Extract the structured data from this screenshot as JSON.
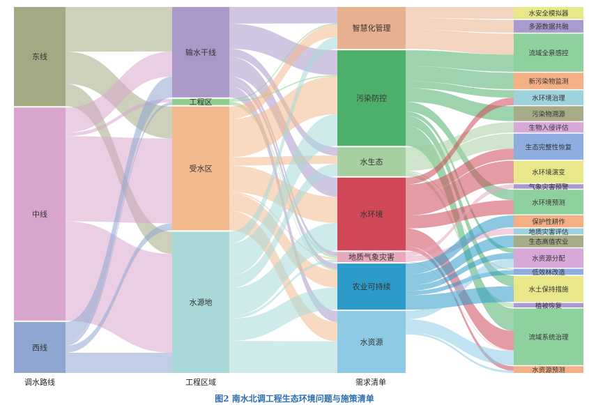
{
  "caption": "图2   南水北调工程生态环境问题与施策清单",
  "columns": [
    {
      "label": "调水路线"
    },
    {
      "label": "工程区域"
    },
    {
      "label": "需求清单"
    },
    {
      "label": ""
    }
  ],
  "nodes": [
    {
      "id": "dongxian",
      "name": "东线",
      "col": 0,
      "value": 142,
      "color": "#a4a984"
    },
    {
      "id": "zhongxian",
      "name": "中线",
      "col": 0,
      "value": 305,
      "color": "#d8a6cc"
    },
    {
      "id": "xixian",
      "name": "西线",
      "col": 0,
      "value": 73,
      "color": "#8ea6d0"
    },
    {
      "id": "shuxian",
      "name": "输水干线",
      "col": 1,
      "value": 130,
      "color": "#aa98c8"
    },
    {
      "id": "gongcheng",
      "name": "工程区",
      "col": 1,
      "value": 9,
      "color": "#90cf8f"
    },
    {
      "id": "shoushui",
      "name": "受水区",
      "col": 1,
      "value": 178,
      "color": "#f3b98e"
    },
    {
      "id": "shuiyuan",
      "name": "水源地",
      "col": 1,
      "value": 203,
      "color": "#a8d8d8"
    },
    {
      "id": "zhihui",
      "name": "智慧化管理",
      "col": 2,
      "value": 61,
      "color": "#e7b08e"
    },
    {
      "id": "wuran",
      "name": "污染防控",
      "col": 2,
      "value": 139,
      "color": "#4caf6a"
    },
    {
      "id": "shuisheng",
      "name": "水生态",
      "col": 2,
      "value": 42,
      "color": "#a6cfa2"
    },
    {
      "id": "shuihuan",
      "name": "水环境",
      "col": 2,
      "value": 106,
      "color": "#d04858"
    },
    {
      "id": "dizhi",
      "name": "地质气象灾害",
      "col": 2,
      "value": 15,
      "color": "#e8a8c0"
    },
    {
      "id": "nongye",
      "name": "农业可持续",
      "col": 2,
      "value": 67,
      "color": "#2d9bc9"
    },
    {
      "id": "shuiziyuan",
      "name": "水资源",
      "col": 2,
      "value": 90,
      "color": "#8ecae6"
    },
    {
      "id": "s1",
      "name": "水安全模拟器",
      "col": 3,
      "value": 16,
      "color": "#e8e88a"
    },
    {
      "id": "s2",
      "name": "多源数据共融",
      "col": 3,
      "value": 17,
      "color": "#a99ad0"
    },
    {
      "id": "s3",
      "name": "流域全景感控",
      "col": 3,
      "value": 51,
      "color": "#8fd19e"
    },
    {
      "id": "s4",
      "name": "新污染物监测",
      "col": 3,
      "value": 22,
      "color": "#f4b084"
    },
    {
      "id": "s5",
      "name": "水环境治理",
      "col": 3,
      "value": 20,
      "color": "#9ed3dd"
    },
    {
      "id": "s6",
      "name": "污染物溯源",
      "col": 3,
      "value": 20,
      "color": "#a8ab88"
    },
    {
      "id": "s7",
      "name": "生物入侵评估",
      "col": 3,
      "value": 14,
      "color": "#d8a8d8"
    },
    {
      "id": "s8",
      "name": "生态完整性恢复",
      "col": 3,
      "value": 35,
      "color": "#8eaee0"
    },
    {
      "id": "s9",
      "name": "水环境演变",
      "col": 3,
      "value": 30,
      "color": "#e8e88a"
    },
    {
      "id": "s10",
      "name": "气象灾害预警",
      "col": 3,
      "value": 6,
      "color": "#a99ad0"
    },
    {
      "id": "s11",
      "name": "水环境预测",
      "col": 3,
      "value": 33,
      "color": "#8fd19e"
    },
    {
      "id": "s12",
      "name": "保护性耕作",
      "col": 3,
      "value": 16,
      "color": "#f4b084"
    },
    {
      "id": "s13",
      "name": "地质灾害评估",
      "col": 3,
      "value": 8,
      "color": "#9ed3dd"
    },
    {
      "id": "s14",
      "name": "生态高值农业",
      "col": 3,
      "value": 16,
      "color": "#a8ab88"
    },
    {
      "id": "s15",
      "name": "水资源分配",
      "col": 3,
      "value": 26,
      "color": "#d8a8d8"
    },
    {
      "id": "s16",
      "name": "低效林改造",
      "col": 3,
      "value": 8,
      "color": "#8eaee0"
    },
    {
      "id": "s17",
      "name": "水土保持措施",
      "col": 3,
      "value": 35,
      "color": "#e8e88a"
    },
    {
      "id": "s18",
      "name": "植被恢复",
      "col": 3,
      "value": 6,
      "color": "#a99ad0"
    },
    {
      "id": "s19",
      "name": "流域系统治理",
      "col": 3,
      "value": 76,
      "color": "#8fd19e"
    },
    {
      "id": "s20",
      "name": "水资源预测",
      "col": 3,
      "value": 9,
      "color": "#f4b084"
    }
  ],
  "links": [
    [
      "dongxian",
      "shuxian",
      64
    ],
    [
      "dongxian",
      "shoushui",
      46
    ],
    [
      "dongxian",
      "shuiyuan",
      32
    ],
    [
      "zhongxian",
      "shuxian",
      36
    ],
    [
      "zhongxian",
      "gongcheng",
      5
    ],
    [
      "zhongxian",
      "shoushui",
      122
    ],
    [
      "zhongxian",
      "shuiyuan",
      142
    ],
    [
      "xixian",
      "shuxian",
      30
    ],
    [
      "xixian",
      "gongcheng",
      4
    ],
    [
      "xixian",
      "shoushui",
      10
    ],
    [
      "xixian",
      "shuiyuan",
      29
    ],
    [
      "shuxian",
      "zhihui",
      24
    ],
    [
      "shuxian",
      "wuran",
      36
    ],
    [
      "shuxian",
      "shuisheng",
      12
    ],
    [
      "shuxian",
      "shuihuan",
      28
    ],
    [
      "shuxian",
      "dizhi",
      6
    ],
    [
      "shuxian",
      "nongye",
      8
    ],
    [
      "shuxian",
      "shuiziyuan",
      16
    ],
    [
      "gongcheng",
      "zhihui",
      2
    ],
    [
      "gongcheng",
      "wuran",
      2
    ],
    [
      "gongcheng",
      "dizhi",
      3
    ],
    [
      "gongcheng",
      "nongye",
      2
    ],
    [
      "shoushui",
      "zhihui",
      18
    ],
    [
      "shoushui",
      "wuran",
      55
    ],
    [
      "shoushui",
      "shuisheng",
      12
    ],
    [
      "shoushui",
      "shuihuan",
      38
    ],
    [
      "shoushui",
      "dizhi",
      2
    ],
    [
      "shoushui",
      "nongye",
      25
    ],
    [
      "shoushui",
      "shuiziyuan",
      28
    ],
    [
      "shuiyuan",
      "zhihui",
      17
    ],
    [
      "shuiyuan",
      "wuran",
      46
    ],
    [
      "shuiyuan",
      "shuisheng",
      18
    ],
    [
      "shuiyuan",
      "shuihuan",
      40
    ],
    [
      "shuiyuan",
      "dizhi",
      4
    ],
    [
      "shuiyuan",
      "nongye",
      32
    ],
    [
      "shuiyuan",
      "shuiziyuan",
      46
    ],
    [
      "zhihui",
      "s1",
      16
    ],
    [
      "zhihui",
      "s2",
      17
    ],
    [
      "zhihui",
      "s3",
      28
    ],
    [
      "wuran",
      "s3",
      23
    ],
    [
      "wuran",
      "s4",
      22
    ],
    [
      "wuran",
      "s5",
      10
    ],
    [
      "wuran",
      "s6",
      20
    ],
    [
      "wuran",
      "s11",
      14
    ],
    [
      "wuran",
      "s19",
      30
    ],
    [
      "wuran",
      "s15",
      6
    ],
    [
      "wuran",
      "s17",
      14
    ],
    [
      "shuisheng",
      "s7",
      14
    ],
    [
      "shuisheng",
      "s8",
      20
    ],
    [
      "shuisheng",
      "s18",
      6
    ],
    [
      "shuisheng",
      "s16",
      2
    ],
    [
      "shuihuan",
      "s5",
      10
    ],
    [
      "shuihuan",
      "s8",
      15
    ],
    [
      "shuihuan",
      "s9",
      30
    ],
    [
      "shuihuan",
      "s11",
      19
    ],
    [
      "shuihuan",
      "s19",
      26
    ],
    [
      "shuihuan",
      "s20",
      6
    ],
    [
      "dizhi",
      "s10",
      6
    ],
    [
      "dizhi",
      "s13",
      8
    ],
    [
      "dizhi",
      "s19",
      1
    ],
    [
      "nongye",
      "s12",
      16
    ],
    [
      "nongye",
      "s14",
      16
    ],
    [
      "nongye",
      "s16",
      6
    ],
    [
      "nongye",
      "s17",
      21
    ],
    [
      "nongye",
      "s15",
      8
    ],
    [
      "shuiziyuan",
      "s15",
      12
    ],
    [
      "shuiziyuan",
      "s19",
      19
    ],
    [
      "shuiziyuan",
      "s20",
      3
    ]
  ]
}
